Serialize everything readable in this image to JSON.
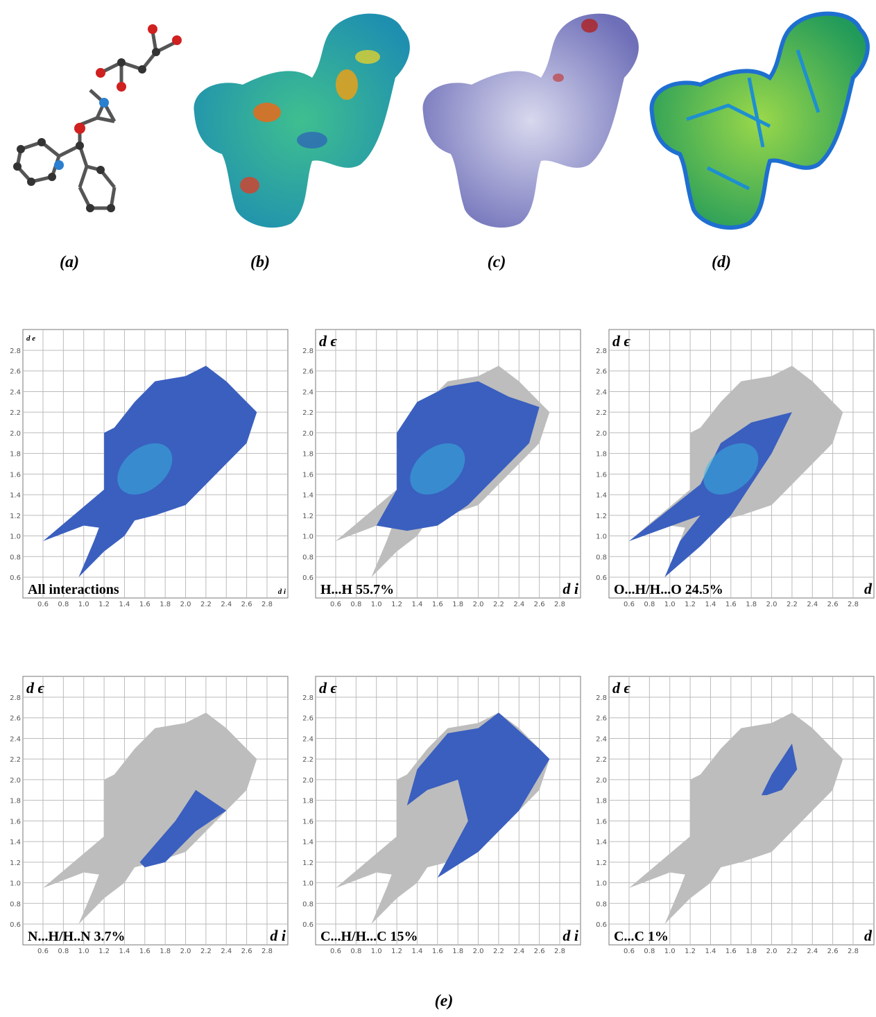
{
  "panel_labels": [
    "(a)",
    "(b)",
    "(c)",
    "(d)",
    "(e)"
  ],
  "axis_ticks": [
    "0.6",
    "0.8",
    "1.0",
    "1.2",
    "1.4",
    "1.6",
    "1.8",
    "2.0",
    "2.2",
    "2.4",
    "2.6",
    "2.8"
  ],
  "plots": [
    {
      "caption": "All interactions",
      "y_label": "d e",
      "x_label": "d i"
    },
    {
      "caption": "H...H 55.7%",
      "y_label": "d ϵ",
      "x_label": "d i"
    },
    {
      "caption": "O...H/H...O 24.5%",
      "y_label": "d ϵ",
      "x_label": "d"
    },
    {
      "caption": "N...H/H..N 3.7%",
      "y_label": "d ϵ",
      "x_label": "d i"
    },
    {
      "caption": "C...H/H...C 15%",
      "y_label": "d ϵ",
      "x_label": "d i"
    },
    {
      "caption": "C...C 1%",
      "y_label": "d ϵ",
      "x_label": "d"
    }
  ]
}
